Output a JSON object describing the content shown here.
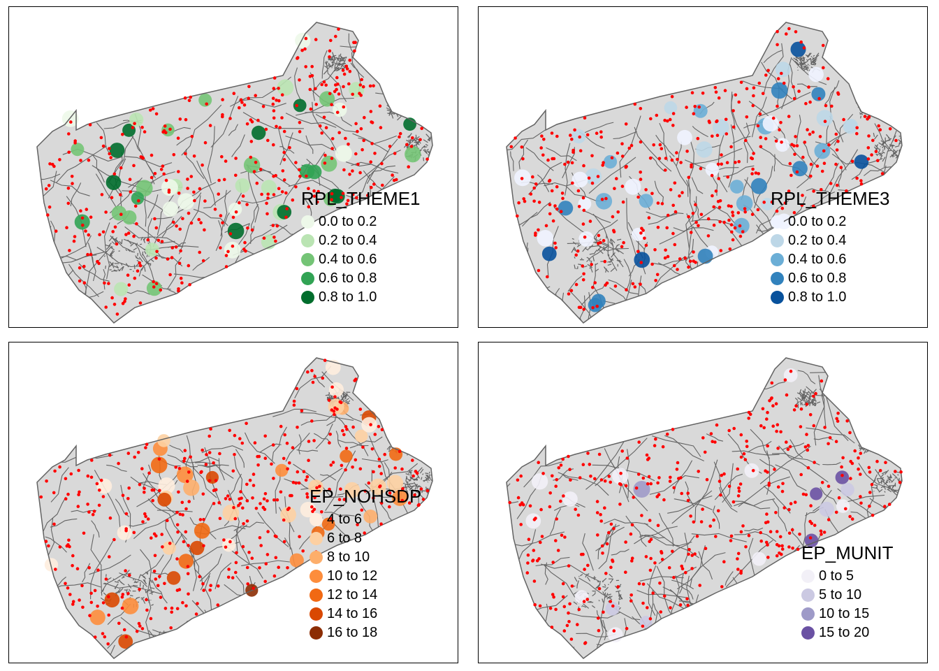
{
  "panels": [
    {
      "legend": {
        "title": "RPL_THEME1",
        "items": [
          {
            "label": "0.0 to 0.2",
            "color": "#edf8e9"
          },
          {
            "label": "0.2 to 0.4",
            "color": "#bae4b3"
          },
          {
            "label": "0.4 to 0.6",
            "color": "#74c476"
          },
          {
            "label": "0.6 to 0.8",
            "color": "#31a354"
          },
          {
            "label": "0.8 to 1.0",
            "color": "#006d2c"
          }
        ]
      }
    },
    {
      "legend": {
        "title": "RPL_THEME3",
        "items": [
          {
            "label": "0.0 to 0.2",
            "color": "#eff3ff"
          },
          {
            "label": "0.2 to 0.4",
            "color": "#bdd7e7"
          },
          {
            "label": "0.4 to 0.6",
            "color": "#6baed6"
          },
          {
            "label": "0.6 to 0.8",
            "color": "#3182bd"
          },
          {
            "label": "0.8 to 1.0",
            "color": "#08519c"
          }
        ]
      }
    },
    {
      "legend": {
        "title": "EP_NOHSDP",
        "items": [
          {
            "label": "4 to 6",
            "color": "#feedde"
          },
          {
            "label": "6 to 8",
            "color": "#fdd0a2"
          },
          {
            "label": "8 to 10",
            "color": "#fdae6b"
          },
          {
            "label": "10 to 12",
            "color": "#fd8d3c"
          },
          {
            "label": "12 to 14",
            "color": "#f16913"
          },
          {
            "label": "14 to 16",
            "color": "#d94801"
          },
          {
            "label": "16 to 18",
            "color": "#8c2d04"
          }
        ]
      }
    },
    {
      "legend": {
        "title": "EP_MUNIT",
        "items": [
          {
            "label": "0 to 5",
            "color": "#f2f0f7"
          },
          {
            "label": "5 to 10",
            "color": "#cbc9e2"
          },
          {
            "label": "10 to 15",
            "color": "#9e9ac8"
          },
          {
            "label": "15 to 20",
            "color": "#6a51a3"
          }
        ]
      }
    }
  ],
  "map_colors": {
    "land": "#d9d9d9",
    "border": "#636363",
    "points": "#ff0000"
  }
}
